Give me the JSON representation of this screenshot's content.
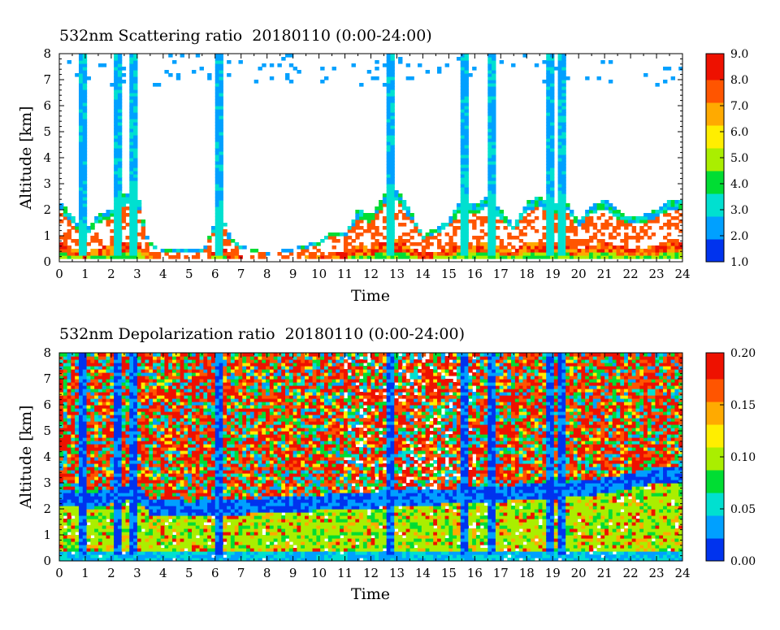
{
  "chart_data": [
    {
      "type": "heatmap",
      "title": "532nm Scattering ratio  20180110 (0:00-24:00)",
      "xlabel": "Time",
      "ylabel": "Altitude [km]",
      "x_ticks": [
        "0",
        "1",
        "2",
        "3",
        "4",
        "5",
        "6",
        "7",
        "8",
        "9",
        "10",
        "11",
        "12",
        "13",
        "14",
        "15",
        "16",
        "17",
        "18",
        "19",
        "20",
        "21",
        "22",
        "23",
        "24"
      ],
      "y_ticks": [
        "0",
        "1",
        "2",
        "3",
        "4",
        "5",
        "6",
        "7",
        "8"
      ],
      "xlim": [
        0,
        24
      ],
      "ylim": [
        0,
        8
      ],
      "colorbar": {
        "range": [
          1.0,
          9.0
        ],
        "tick_labels": [
          "1.0",
          "2.0",
          "3.0",
          "4.0",
          "5.0",
          "6.0",
          "7.0",
          "8.0",
          "9.0"
        ]
      },
      "colormap": [
        "#0033ee",
        "#00a0ff",
        "#00e0d0",
        "#00dd33",
        "#aaee00",
        "#ffee00",
        "#ffaa00",
        "#ff5500",
        "#ee1100"
      ],
      "features": {
        "boundary_layer_top_km": [
          [
            0,
            2.4
          ],
          [
            0.3,
            2.0
          ],
          [
            0.6,
            1.6
          ],
          [
            1.0,
            1.2
          ],
          [
            1.5,
            1.8
          ],
          [
            2.0,
            2.0
          ],
          [
            2.5,
            2.6
          ],
          [
            3.0,
            2.8
          ],
          [
            3.3,
            1.2
          ],
          [
            3.6,
            0.6
          ],
          [
            4.0,
            0.5
          ],
          [
            5.0,
            0.45
          ],
          [
            5.6,
            0.5
          ],
          [
            5.9,
            1.3
          ],
          [
            6.2,
            2.2
          ],
          [
            6.5,
            1.1
          ],
          [
            7.0,
            0.6
          ],
          [
            8.0,
            0.35
          ],
          [
            9.0,
            0.5
          ],
          [
            10.0,
            0.8
          ],
          [
            10.5,
            1.2
          ],
          [
            11.0,
            1.1
          ],
          [
            11.5,
            2.0
          ],
          [
            12.0,
            1.8
          ],
          [
            12.5,
            2.6
          ],
          [
            13.0,
            2.8
          ],
          [
            13.5,
            2.0
          ],
          [
            14.0,
            1.0
          ],
          [
            14.5,
            1.3
          ],
          [
            15.0,
            1.6
          ],
          [
            15.5,
            2.4
          ],
          [
            16.0,
            2.2
          ],
          [
            16.5,
            2.5
          ],
          [
            17.0,
            2.0
          ],
          [
            17.5,
            1.4
          ],
          [
            18.0,
            2.3
          ],
          [
            18.5,
            2.5
          ],
          [
            19.0,
            2.2
          ],
          [
            19.5,
            2.4
          ],
          [
            20.0,
            1.6
          ],
          [
            20.5,
            2.2
          ],
          [
            21.0,
            2.4
          ],
          [
            21.5,
            2.0
          ],
          [
            22.0,
            1.7
          ],
          [
            22.5,
            1.8
          ],
          [
            23.0,
            2.0
          ],
          [
            23.5,
            2.4
          ],
          [
            24.0,
            2.3
          ]
        ],
        "cloud_columns_hours": [
          0.85,
          2.2,
          2.9,
          6.1,
          12.8,
          15.6,
          16.7,
          18.9,
          19.4
        ]
      }
    },
    {
      "type": "heatmap",
      "title": "532nm Depolarization ratio  20180110 (0:00-24:00)",
      "xlabel": "Time",
      "ylabel": "Altitude [km]",
      "x_ticks": [
        "0",
        "1",
        "2",
        "3",
        "4",
        "5",
        "6",
        "7",
        "8",
        "9",
        "10",
        "11",
        "12",
        "13",
        "14",
        "15",
        "16",
        "17",
        "18",
        "19",
        "20",
        "21",
        "22",
        "23",
        "24"
      ],
      "y_ticks": [
        "0",
        "1",
        "2",
        "3",
        "4",
        "5",
        "6",
        "7",
        "8"
      ],
      "xlim": [
        0,
        24
      ],
      "ylim": [
        0,
        8
      ],
      "colorbar": {
        "range": [
          0.0,
          0.2
        ],
        "tick_labels": [
          "0.00",
          "0.05",
          "0.10",
          "0.15",
          "0.20"
        ]
      },
      "colormap": [
        "#0033ee",
        "#00a0ff",
        "#00e0d0",
        "#00dd33",
        "#aaee00",
        "#ffee00",
        "#ffaa00",
        "#ff5500",
        "#ee1100"
      ],
      "features": {
        "boundary_layer_top_km": [
          [
            0,
            2.2
          ],
          [
            1,
            2.0
          ],
          [
            2,
            2.2
          ],
          [
            3,
            2.4
          ],
          [
            3.5,
            1.8
          ],
          [
            5,
            1.7
          ],
          [
            7,
            1.8
          ],
          [
            9,
            1.9
          ],
          [
            11,
            2.0
          ],
          [
            13,
            2.1
          ],
          [
            15,
            2.2
          ],
          [
            17,
            2.3
          ],
          [
            19,
            2.4
          ],
          [
            21,
            2.6
          ],
          [
            23,
            3.0
          ],
          [
            24,
            3.0
          ]
        ],
        "cloud_columns_hours": [
          0.85,
          2.2,
          2.9,
          6.1,
          12.8,
          15.6,
          16.7,
          18.9,
          19.4
        ]
      }
    }
  ]
}
